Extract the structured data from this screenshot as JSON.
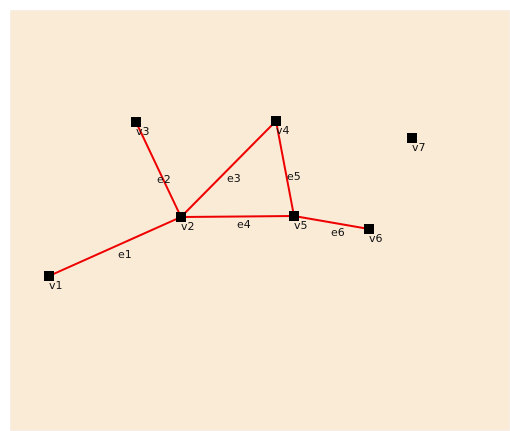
{
  "canvas": {
    "background": "#faebd7",
    "border_color": "#f2f2f2"
  },
  "graph": {
    "edge_color": "#ee0000",
    "vertex_color": "#000000",
    "vertices": [
      {
        "id": "v1",
        "label": "v1"
      },
      {
        "id": "v2",
        "label": "v2"
      },
      {
        "id": "v3",
        "label": "v3"
      },
      {
        "id": "v4",
        "label": "v4"
      },
      {
        "id": "v5",
        "label": "v5"
      },
      {
        "id": "v6",
        "label": "v6"
      },
      {
        "id": "v7",
        "label": "v7"
      }
    ],
    "edges": [
      {
        "id": "e1",
        "label": "e1",
        "from": "v1",
        "to": "v2"
      },
      {
        "id": "e2",
        "label": "e2",
        "from": "v3",
        "to": "v2"
      },
      {
        "id": "e3",
        "label": "e3",
        "from": "v2",
        "to": "v4"
      },
      {
        "id": "e4",
        "label": "e4",
        "from": "v2",
        "to": "v5"
      },
      {
        "id": "e5",
        "label": "e5",
        "from": "v4",
        "to": "v5"
      },
      {
        "id": "e6",
        "label": "e6",
        "from": "v5",
        "to": "v6"
      }
    ]
  }
}
